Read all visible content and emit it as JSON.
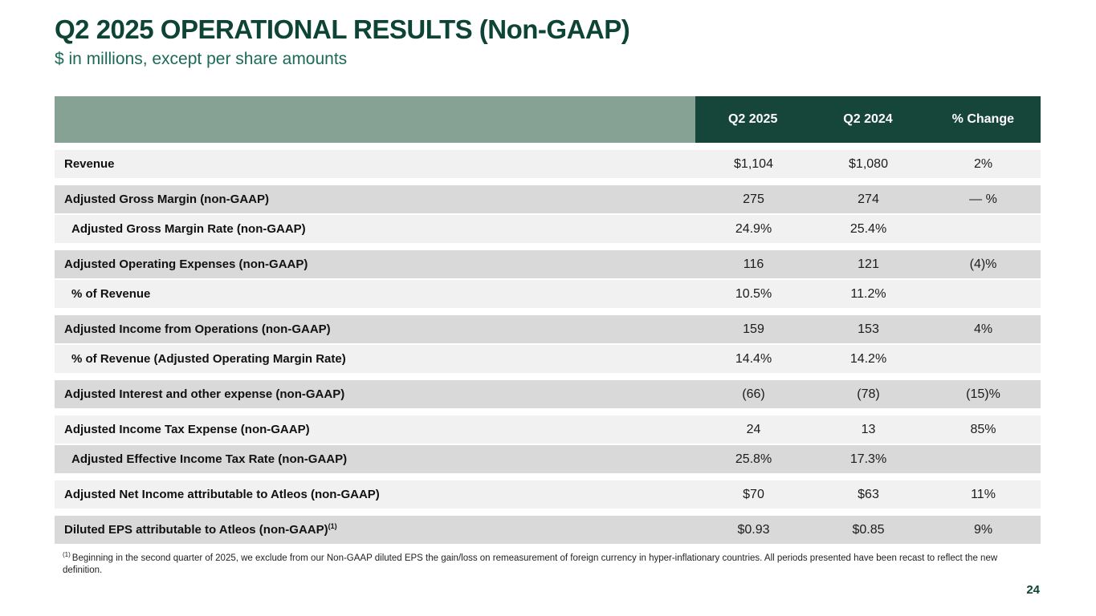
{
  "slide": {
    "title": "Q2 2025 OPERATIONAL RESULTS (Non-GAAP)",
    "subtitle": "$ in millions, except per share amounts",
    "page_number": "24"
  },
  "colors": {
    "title_green": "#0d4436",
    "subtitle_green": "#1b6a58",
    "header_dark_green": "#16463a",
    "header_sage": "#85a294",
    "row_light": "#f1f1f1",
    "row_dark": "#d9d9d9"
  },
  "table": {
    "columns": [
      "Q2 2025",
      "Q2 2024",
      "% Change"
    ],
    "rows": [
      {
        "label": "Revenue",
        "values": [
          "$1,104",
          "$1,080",
          "2%"
        ],
        "shade": "light",
        "indent": false,
        "gap": "none"
      },
      {
        "label": "Adjusted Gross Margin (non-GAAP)",
        "values": [
          "275",
          "274",
          "— %"
        ],
        "shade": "dark",
        "indent": false,
        "gap": "big"
      },
      {
        "label": "Adjusted Gross Margin Rate (non-GAAP)",
        "values": [
          "24.9%",
          "25.4%",
          ""
        ],
        "shade": "light",
        "indent": true,
        "gap": "thin"
      },
      {
        "label": "Adjusted Operating Expenses (non-GAAP)",
        "values": [
          "116",
          "121",
          "(4)%"
        ],
        "shade": "dark",
        "indent": false,
        "gap": "big"
      },
      {
        "label": "% of Revenue",
        "values": [
          "10.5%",
          "11.2%",
          ""
        ],
        "shade": "light",
        "indent": true,
        "gap": "thin"
      },
      {
        "label": "Adjusted Income from Operations (non-GAAP)",
        "values": [
          "159",
          "153",
          "4%"
        ],
        "shade": "dark",
        "indent": false,
        "gap": "big"
      },
      {
        "label": "% of Revenue (Adjusted Operating Margin Rate)",
        "values": [
          "14.4%",
          "14.2%",
          ""
        ],
        "shade": "light",
        "indent": true,
        "gap": "thin"
      },
      {
        "label": "Adjusted Interest and other expense (non-GAAP)",
        "values": [
          "(66)",
          "(78)",
          "(15)%"
        ],
        "shade": "dark",
        "indent": false,
        "gap": "big"
      },
      {
        "label": "Adjusted Income Tax Expense (non-GAAP)",
        "values": [
          "24",
          "13",
          "85%"
        ],
        "shade": "light",
        "indent": false,
        "gap": "big"
      },
      {
        "label": "Adjusted Effective Income Tax Rate (non-GAAP)",
        "values": [
          "25.8%",
          "17.3%",
          ""
        ],
        "shade": "dark",
        "indent": true,
        "gap": "thin"
      },
      {
        "label": "Adjusted Net Income attributable to Atleos (non-GAAP)",
        "values": [
          "$70",
          "$63",
          "11%"
        ],
        "shade": "light",
        "indent": false,
        "gap": "big"
      },
      {
        "label": "Diluted EPS attributable to Atleos (non-GAAP)",
        "sup": "(1)",
        "values": [
          "$0.93",
          "$0.85",
          "9%"
        ],
        "shade": "dark",
        "indent": false,
        "gap": "big"
      }
    ]
  },
  "footnote": {
    "marker": "(1)",
    "text": "Beginning in the second quarter of 2025, we exclude from our Non-GAAP diluted EPS the gain/loss on remeasurement of foreign currency in hyper-inflationary countries. All periods presented have been recast to reflect the new definition."
  }
}
